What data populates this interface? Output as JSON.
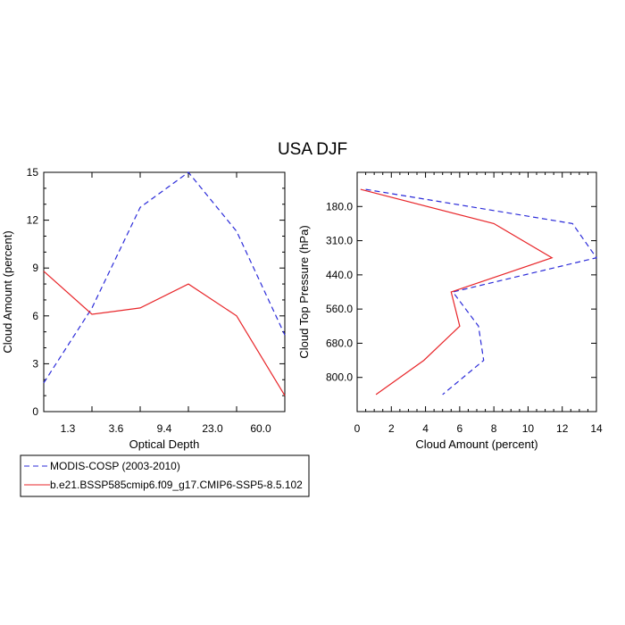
{
  "title": "USA DJF",
  "colors": {
    "modis": "#2b2bd9",
    "model": "#e8262a"
  },
  "legend": {
    "entries": [
      {
        "label": "MODIS-COSP (2003-2010)",
        "color": "#2b2bd9",
        "dashed": true
      },
      {
        "label": "b.e21.BSSP585cmip6.f09_g17.CMIP6-SSP5-8.5.102",
        "color": "#e8262a",
        "dashed": false
      }
    ],
    "placement": "bottom-left"
  },
  "chart_data": [
    {
      "type": "line",
      "xlabel": "Optical Depth",
      "ylabel": "Cloud Amount (percent)",
      "x": [
        0,
        1,
        2,
        3,
        4,
        5
      ],
      "xlim": [
        0,
        5
      ],
      "xtick_positions": [
        0.5,
        1.5,
        2.5,
        3.5,
        4.5
      ],
      "xtick_labels": [
        "1.3",
        "3.6",
        "9.4",
        "23.0",
        "60.0"
      ],
      "ylim": [
        0,
        15
      ],
      "yticks": [
        0,
        3,
        6,
        9,
        12,
        15
      ],
      "series": [
        {
          "name": "MODIS-COSP (2003-2010)",
          "values": [
            1.8,
            6.5,
            12.8,
            15.0,
            11.3,
            4.8
          ]
        },
        {
          "name": "b.e21.BSSP585cmip6.f09_g17.CMIP6-SSP5-8.5.102",
          "values": [
            8.8,
            6.1,
            6.5,
            8.0,
            6.0,
            1.0
          ]
        }
      ]
    },
    {
      "type": "line",
      "xlabel": "Cloud Amount (percent)",
      "ylabel": "Cloud Top Pressure (hPa)",
      "y": [
        1,
        2,
        3,
        4,
        5,
        6,
        7
      ],
      "ylim": [
        0.5,
        7.5
      ],
      "y_reversed": true,
      "ytick_positions": [
        1.5,
        2.5,
        3.5,
        4.5,
        5.5,
        6.5
      ],
      "ytick_labels": [
        "180.0",
        "310.0",
        "440.0",
        "560.0",
        "680.0",
        "800.0"
      ],
      "xlim": [
        0,
        14
      ],
      "xticks": [
        0,
        2,
        4,
        6,
        8,
        10,
        12,
        14
      ],
      "series": [
        {
          "name": "MODIS-COSP (2003-2010)",
          "values": [
            0.5,
            12.6,
            14.0,
            5.6,
            7.1,
            7.4,
            5.0
          ]
        },
        {
          "name": "b.e21.BSSP585cmip6.f09_g17.CMIP6-SSP5-8.5.102",
          "values": [
            0.2,
            8.0,
            11.4,
            5.5,
            6.0,
            3.9,
            1.1
          ]
        }
      ]
    }
  ]
}
